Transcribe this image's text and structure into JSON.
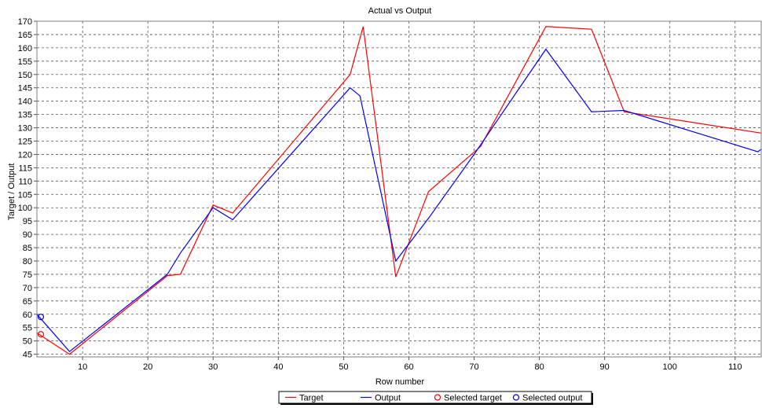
{
  "chart_data": {
    "type": "line",
    "title": "Actual vs Output",
    "xlabel": "Row number",
    "ylabel": "Target / Output",
    "xlim": [
      3,
      114
    ],
    "ylim": [
      44,
      170
    ],
    "xticks": [
      10,
      20,
      30,
      40,
      50,
      60,
      70,
      80,
      90,
      100,
      110
    ],
    "yticks": [
      45,
      50,
      55,
      60,
      65,
      70,
      75,
      80,
      85,
      90,
      95,
      100,
      105,
      110,
      115,
      120,
      125,
      130,
      135,
      140,
      145,
      150,
      155,
      160,
      165,
      170
    ],
    "grid": true,
    "legend_position": "bottom-center",
    "series": [
      {
        "name": "Target",
        "color": "#ff0000",
        "points": [
          [
            3,
            53
          ],
          [
            8,
            45
          ],
          [
            23,
            74.5
          ],
          [
            25,
            75
          ],
          [
            30,
            101
          ],
          [
            33,
            98
          ],
          [
            51,
            150
          ],
          [
            53,
            168
          ],
          [
            58,
            74
          ],
          [
            63,
            106
          ],
          [
            71,
            123
          ],
          [
            81,
            168
          ],
          [
            88,
            167
          ],
          [
            93,
            136
          ],
          [
            114,
            128
          ]
        ]
      },
      {
        "name": "Output",
        "color": "#0000ff",
        "points": [
          [
            3,
            60
          ],
          [
            8,
            46
          ],
          [
            23,
            75
          ],
          [
            25,
            83
          ],
          [
            30,
            100
          ],
          [
            33,
            95.5
          ],
          [
            51,
            145
          ],
          [
            52.5,
            142
          ],
          [
            58,
            80
          ],
          [
            63,
            96
          ],
          [
            70,
            120
          ],
          [
            81,
            159.5
          ],
          [
            88,
            136
          ],
          [
            93,
            136.5
          ],
          [
            113.5,
            121
          ],
          [
            114,
            122
          ]
        ]
      },
      {
        "name": "Selected target",
        "color": "#ff0000",
        "marker": "circle",
        "points": [
          [
            3.6,
            52.5
          ]
        ]
      },
      {
        "name": "Selected output",
        "color": "#0000ff",
        "marker": "circle",
        "points": [
          [
            3.6,
            59
          ]
        ]
      }
    ]
  }
}
